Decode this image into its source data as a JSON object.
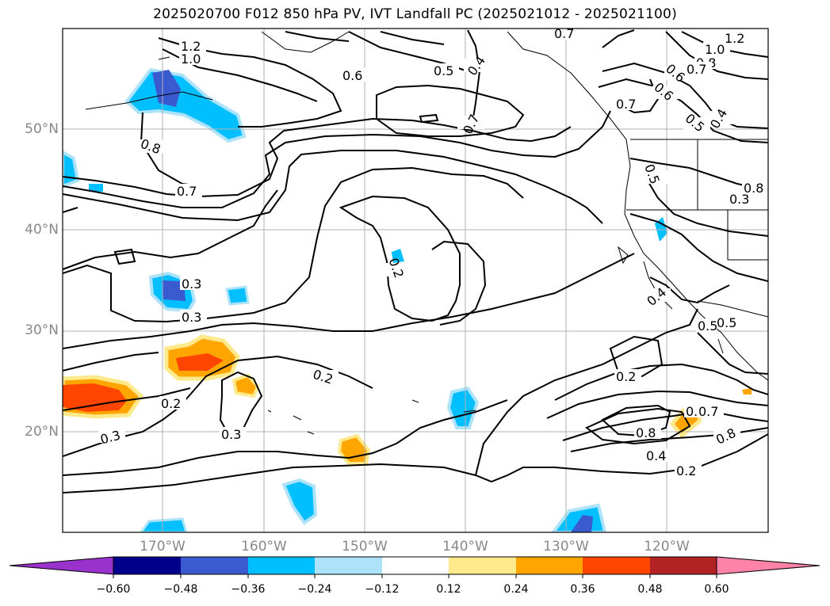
{
  "title": "2025020700 F012 850 hPa PV, IVT Landfall PC (2025021012 - 2025021100)",
  "lat_labels": [
    "50°N",
    "40°N",
    "30°N",
    "20°N"
  ],
  "lon_labels": [
    "170°W",
    "160°W",
    "150°W",
    "140°W",
    "130°W",
    "120°W"
  ],
  "contour_labels": [
    "1.2",
    "1.0",
    "0.6",
    "0.5",
    "0.4",
    "0.7",
    "0.8",
    "0.7",
    "0.6",
    "1.0",
    "1.2",
    "0.8",
    "0.7",
    "0.6",
    "0.5",
    "0.4",
    "0.7",
    "0.8",
    "0.7",
    "0.5",
    "0.3",
    "0.3",
    "0.3",
    "0.2",
    "0.2",
    "0.2",
    "0.3",
    "0.3",
    "0.2",
    "0.5",
    "0.4",
    "0.6",
    "0.7",
    "0.8",
    "0.4",
    "0.2",
    "0.8",
    "0.5"
  ],
  "colorbar": {
    "tick_labels": [
      "−0.60",
      "−0.48",
      "−0.36",
      "−0.24",
      "−0.12",
      "0.12",
      "0.24",
      "0.36",
      "0.48",
      "0.60"
    ],
    "colors": [
      "#9932CC",
      "#00008B",
      "#3A5BD0",
      "#00BFFF",
      "#ADE3FA",
      "#FFFFFF",
      "#FFE98A",
      "#FFA500",
      "#FF4500",
      "#B22222",
      "#FF82A9"
    ]
  },
  "colors": {
    "grid": "#b0b0b0",
    "contour": "#000000",
    "axis_label": "#888888"
  }
}
